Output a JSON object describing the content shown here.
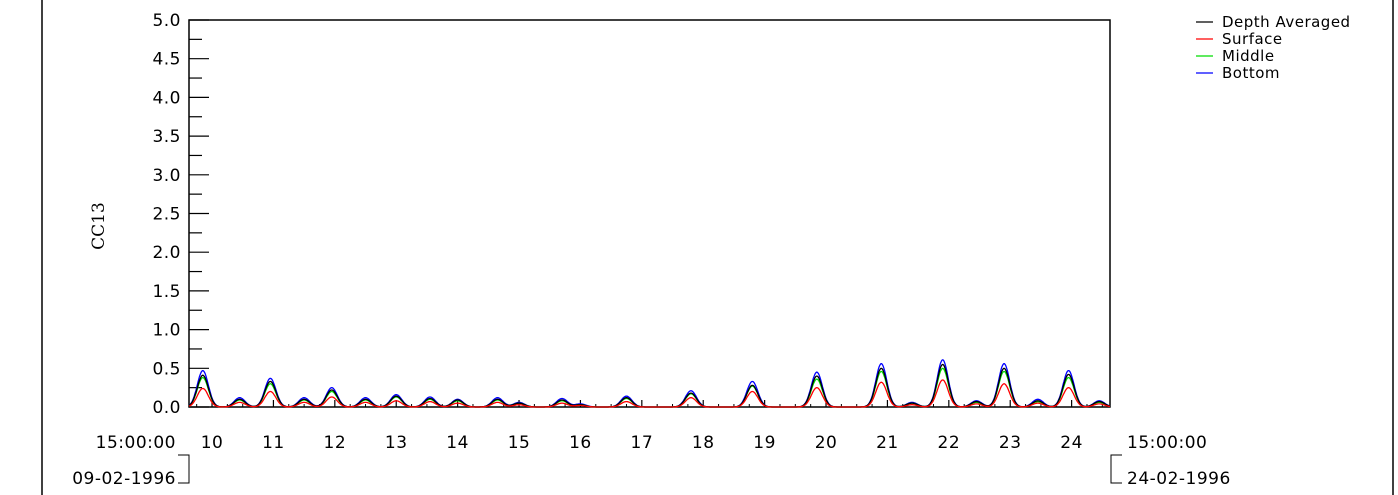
{
  "chart_data": {
    "type": "line",
    "title": "",
    "xlabel": "",
    "ylabel": "CC13",
    "ylim": [
      0,
      5
    ],
    "y_ticks": [
      "0.0",
      "0.5",
      "1.0",
      "1.5",
      "2.0",
      "2.5",
      "3.0",
      "3.5",
      "4.0",
      "4.5",
      "5.0"
    ],
    "x_range_days": [
      9.625,
      24.625
    ],
    "x_day_ticks": [
      "10",
      "11",
      "12",
      "13",
      "14",
      "15",
      "16",
      "17",
      "18",
      "19",
      "20",
      "21",
      "22",
      "23",
      "24"
    ],
    "start_time": "15:00:00",
    "start_date": "09-02-1996",
    "end_time": "15:00:00",
    "end_date": "24-02-1996",
    "legend_position": "top-right",
    "series": [
      {
        "name": "Depth Averaged",
        "color": "#000000",
        "peak_days": [
          9.85,
          10.45,
          10.95,
          11.5,
          11.95,
          12.5,
          13.0,
          13.55,
          14.0,
          14.65,
          15.0,
          15.7,
          16.0,
          16.75,
          17.8,
          18.8,
          19.85,
          20.9,
          21.4,
          21.9,
          22.45,
          22.9,
          23.45,
          23.95,
          24.45
        ],
        "peak_values": [
          0.41,
          0.1,
          0.33,
          0.1,
          0.22,
          0.1,
          0.14,
          0.11,
          0.09,
          0.1,
          0.05,
          0.09,
          0.03,
          0.12,
          0.18,
          0.28,
          0.4,
          0.5,
          0.05,
          0.55,
          0.07,
          0.5,
          0.08,
          0.42,
          0.07
        ]
      },
      {
        "name": "Surface",
        "color": "#ff0000",
        "peak_days": [
          9.85,
          10.45,
          10.95,
          11.5,
          11.95,
          12.5,
          13.0,
          13.55,
          14.0,
          14.65,
          15.0,
          15.7,
          16.0,
          16.75,
          17.8,
          18.8,
          19.85,
          20.9,
          21.4,
          21.9,
          22.45,
          22.9,
          23.45,
          23.95,
          24.45
        ],
        "peak_values": [
          0.24,
          0.06,
          0.2,
          0.06,
          0.13,
          0.06,
          0.08,
          0.07,
          0.05,
          0.06,
          0.03,
          0.05,
          0.02,
          0.07,
          0.12,
          0.2,
          0.25,
          0.32,
          0.03,
          0.35,
          0.04,
          0.3,
          0.05,
          0.25,
          0.04
        ]
      },
      {
        "name": "Middle",
        "color": "#00dd00",
        "peak_days": [
          9.85,
          10.45,
          10.95,
          11.5,
          11.95,
          12.5,
          13.0,
          13.55,
          14.0,
          14.65,
          15.0,
          15.7,
          16.0,
          16.75,
          17.8,
          18.8,
          19.85,
          20.9,
          21.4,
          21.9,
          22.45,
          22.9,
          23.45,
          23.95,
          24.45
        ],
        "peak_values": [
          0.38,
          0.09,
          0.3,
          0.09,
          0.2,
          0.09,
          0.13,
          0.1,
          0.08,
          0.09,
          0.05,
          0.08,
          0.03,
          0.11,
          0.17,
          0.27,
          0.36,
          0.46,
          0.05,
          0.5,
          0.06,
          0.46,
          0.07,
          0.38,
          0.06
        ]
      },
      {
        "name": "Bottom",
        "color": "#0000ff",
        "peak_days": [
          9.85,
          10.45,
          10.95,
          11.5,
          11.95,
          12.5,
          13.0,
          13.55,
          14.0,
          14.65,
          15.0,
          15.7,
          16.0,
          16.75,
          17.8,
          18.8,
          19.85,
          20.9,
          21.4,
          21.9,
          22.45,
          22.9,
          23.45,
          23.95,
          24.45
        ],
        "peak_values": [
          0.47,
          0.12,
          0.37,
          0.12,
          0.25,
          0.12,
          0.16,
          0.13,
          0.1,
          0.12,
          0.06,
          0.11,
          0.04,
          0.14,
          0.21,
          0.33,
          0.45,
          0.56,
          0.06,
          0.61,
          0.08,
          0.56,
          0.1,
          0.47,
          0.08
        ]
      }
    ]
  }
}
